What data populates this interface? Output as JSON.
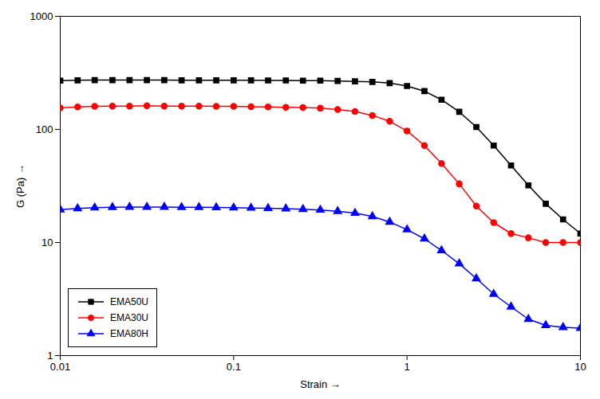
{
  "chart_data": {
    "type": "line",
    "xlabel": "Strain",
    "ylabel": "G (Pa)",
    "x": [
      0.01,
      0.0126,
      0.0158,
      0.02,
      0.0251,
      0.0316,
      0.0398,
      0.0501,
      0.0631,
      0.0794,
      0.1,
      0.126,
      0.158,
      0.2,
      0.251,
      0.316,
      0.398,
      0.501,
      0.631,
      0.794,
      1.0,
      1.26,
      1.58,
      2.0,
      2.51,
      3.16,
      3.98,
      5.01,
      6.31,
      7.94,
      10.0
    ],
    "series": [
      {
        "name": "EMA50U",
        "color": "#000000",
        "marker": "square",
        "values": [
          270,
          272,
          273,
          273,
          273,
          273,
          273,
          272,
          272,
          272,
          272,
          272,
          271,
          271,
          270,
          270,
          268,
          266,
          263,
          257,
          242,
          218,
          183,
          143,
          105,
          72,
          48,
          32,
          22,
          16,
          12
        ]
      },
      {
        "name": "EMA30U",
        "color": "#ff0000",
        "marker": "circle",
        "values": [
          155,
          158,
          160,
          161,
          161,
          162,
          161,
          161,
          161,
          160,
          160,
          159,
          158,
          157,
          156,
          154,
          150,
          144,
          133,
          118,
          97,
          72,
          50,
          33,
          21,
          15,
          12,
          11,
          10,
          10,
          10
        ]
      },
      {
        "name": "EMA80H",
        "color": "#0000ff",
        "marker": "triangle",
        "values": [
          19.5,
          20.0,
          20.3,
          20.5,
          20.6,
          20.6,
          20.6,
          20.5,
          20.5,
          20.4,
          20.3,
          20.2,
          20.1,
          19.9,
          19.7,
          19.4,
          18.9,
          18.2,
          17.0,
          15.2,
          13.0,
          10.8,
          8.5,
          6.5,
          4.8,
          3.5,
          2.7,
          2.1,
          1.85,
          1.78,
          1.75
        ]
      }
    ],
    "xlim": [
      0.01,
      10
    ],
    "ylim": [
      1,
      1000
    ],
    "xticks": [
      0.01,
      0.1,
      1,
      10
    ],
    "yticks": [
      1,
      10,
      100,
      1000
    ],
    "log": true,
    "grid": false,
    "legend": "lower left"
  }
}
